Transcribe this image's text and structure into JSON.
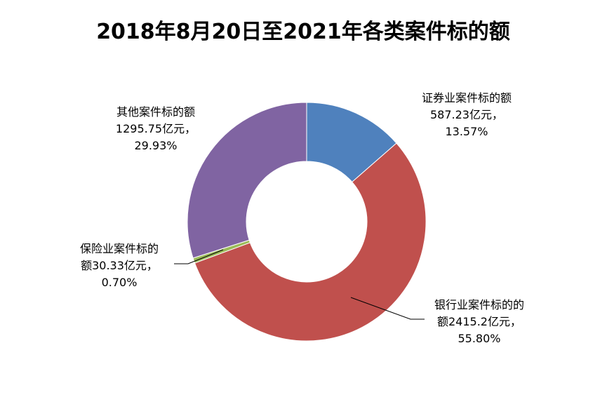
{
  "chart_data": {
    "type": "pie",
    "variant": "donut",
    "title": "2018年8月20日至2021年各类案件标的额",
    "legend": "none",
    "slices": [
      {
        "name": "证券业案件标的额",
        "value": 587.23,
        "unit": "亿元",
        "percent": "13.57%",
        "color": "#4F81BD",
        "label_lines": [
          "证券业案件标的额",
          "587.23亿元，",
          "13.57%"
        ]
      },
      {
        "name": "银行业案件标的额",
        "value": 2415.2,
        "unit": "亿元",
        "percent": "55.80%",
        "color": "#C0504D",
        "label_lines": [
          "银行业案件标的的",
          "额2415.2亿元，",
          "55.80%"
        ]
      },
      {
        "name": "保险业案件标的额",
        "value": 30.33,
        "unit": "亿元",
        "percent": "0.70%",
        "color": "#9BBB59",
        "label_lines": [
          "保险业案件标的",
          "额30.33亿元，",
          "0.70%"
        ]
      },
      {
        "name": "其他案件标的额",
        "value": 1295.75,
        "unit": "亿元",
        "percent": "29.93%",
        "color": "#8064A2",
        "label_lines": [
          "其他案件标的额",
          "1295.75亿元，",
          "29.93%"
        ]
      }
    ]
  }
}
